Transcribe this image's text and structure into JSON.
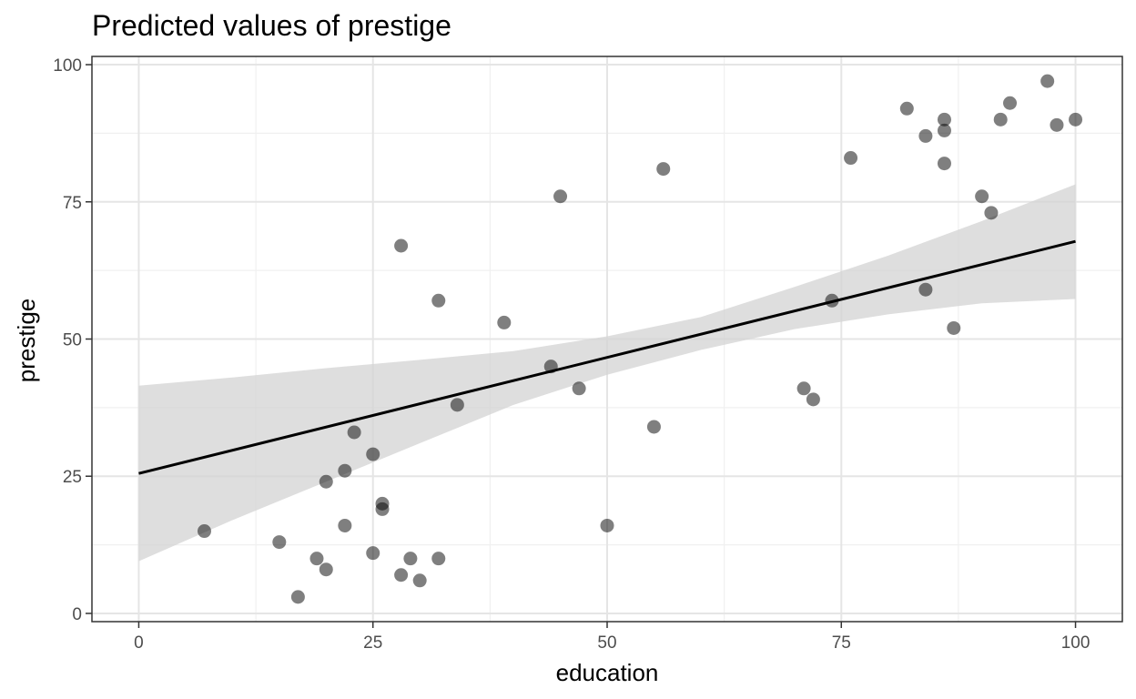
{
  "chart_data": {
    "type": "scatter",
    "title": "Predicted values of prestige",
    "xlabel": "education",
    "ylabel": "prestige",
    "xlim": [
      -5,
      105
    ],
    "ylim": [
      -1.5,
      101.5
    ],
    "x_ticks": [
      0,
      25,
      50,
      75,
      100
    ],
    "y_ticks": [
      0,
      25,
      50,
      75,
      100
    ],
    "x_tick_labels": [
      "0",
      "25",
      "50",
      "75",
      "100"
    ],
    "y_tick_labels": [
      "0",
      "25",
      "50",
      "75",
      "100"
    ],
    "grid": true,
    "points": [
      {
        "x": 7,
        "y": 15
      },
      {
        "x": 15,
        "y": 13
      },
      {
        "x": 17,
        "y": 3
      },
      {
        "x": 19,
        "y": 10
      },
      {
        "x": 20,
        "y": 24
      },
      {
        "x": 20,
        "y": 8
      },
      {
        "x": 22,
        "y": 26
      },
      {
        "x": 22,
        "y": 16
      },
      {
        "x": 23,
        "y": 33
      },
      {
        "x": 25,
        "y": 29
      },
      {
        "x": 25,
        "y": 11
      },
      {
        "x": 26,
        "y": 20
      },
      {
        "x": 26,
        "y": 19
      },
      {
        "x": 28,
        "y": 67
      },
      {
        "x": 28,
        "y": 7
      },
      {
        "x": 29,
        "y": 10
      },
      {
        "x": 30,
        "y": 6
      },
      {
        "x": 32,
        "y": 57
      },
      {
        "x": 32,
        "y": 10
      },
      {
        "x": 34,
        "y": 38
      },
      {
        "x": 39,
        "y": 53
      },
      {
        "x": 44,
        "y": 45
      },
      {
        "x": 45,
        "y": 76
      },
      {
        "x": 47,
        "y": 41
      },
      {
        "x": 50,
        "y": 16
      },
      {
        "x": 55,
        "y": 34
      },
      {
        "x": 56,
        "y": 81
      },
      {
        "x": 71,
        "y": 41
      },
      {
        "x": 72,
        "y": 39
      },
      {
        "x": 74,
        "y": 57
      },
      {
        "x": 76,
        "y": 83
      },
      {
        "x": 82,
        "y": 92
      },
      {
        "x": 84,
        "y": 87
      },
      {
        "x": 84,
        "y": 59
      },
      {
        "x": 86,
        "y": 90
      },
      {
        "x": 86,
        "y": 88
      },
      {
        "x": 86,
        "y": 82
      },
      {
        "x": 87,
        "y": 52
      },
      {
        "x": 90,
        "y": 76
      },
      {
        "x": 91,
        "y": 73
      },
      {
        "x": 92,
        "y": 90
      },
      {
        "x": 93,
        "y": 93
      },
      {
        "x": 97,
        "y": 97
      },
      {
        "x": 98,
        "y": 89
      },
      {
        "x": 100,
        "y": 90
      }
    ],
    "fit_line": [
      {
        "x": 0,
        "y": 25.5
      },
      {
        "x": 100,
        "y": 67.8
      }
    ],
    "confidence_band": {
      "x": [
        0,
        10,
        20,
        30,
        40,
        50,
        60,
        70,
        80,
        90,
        100
      ],
      "upper": [
        41.5,
        43.0,
        44.7,
        46.2,
        47.8,
        50.5,
        54.0,
        59.5,
        65.2,
        71.5,
        78.2
      ],
      "lower": [
        9.5,
        17.0,
        24.0,
        31.0,
        38.0,
        43.5,
        48.0,
        51.8,
        54.5,
        56.5,
        57.3
      ]
    },
    "colors": {
      "points": "#000000",
      "points_opacity": 0.5,
      "fit_line": "#000000",
      "band": "#d3d3d3",
      "grid_major": "#e5e5e5",
      "grid_minor": "#f0f0f0",
      "panel_border": "#333333",
      "tick_text": "#4d4d4d"
    }
  }
}
